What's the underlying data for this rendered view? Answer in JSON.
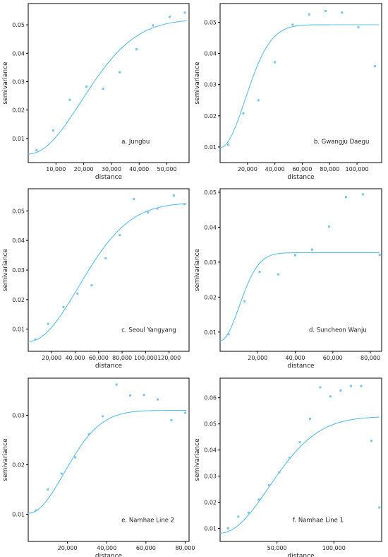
{
  "colors": {
    "point": "#7ec6e6",
    "curve": "#5bbde8",
    "axis": "#000000"
  },
  "chart_data": [
    {
      "type": "scatter",
      "title": "a. Jungbu",
      "xlabel": "distance",
      "ylabel": "semivariance",
      "xlim": [
        0,
        58000
      ],
      "ylim": [
        0.0015,
        0.0575
      ],
      "xticks": [
        10000,
        20000,
        30000,
        40000,
        50000
      ],
      "xtick_labels": [
        "10,000",
        "20,000",
        "30,000",
        "40,000",
        "50,000"
      ],
      "yticks": [
        0.01,
        0.02,
        0.03,
        0.04,
        0.05
      ],
      "ytick_labels": [
        "0.01",
        "0.02",
        "0.03",
        "0.04",
        "0.05"
      ],
      "points": {
        "x": [
          3000,
          9000,
          15000,
          21000,
          27000,
          33000,
          39000,
          45000,
          51000,
          56500
        ],
        "y": [
          0.0058,
          0.0128,
          0.0236,
          0.0282,
          0.0275,
          0.0333,
          0.0414,
          0.0498,
          0.0528,
          0.0543
        ]
      },
      "fit": {
        "model": "gaussian",
        "nugget": 0.0045,
        "sill": 0.052,
        "range": 47000
      }
    },
    {
      "type": "scatter",
      "title": "b. Gwangju Daegu",
      "xlabel": "distance",
      "ylabel": "semivariance",
      "xlim": [
        0,
        118000
      ],
      "ylim": [
        0.005,
        0.056
      ],
      "xticks": [
        20000,
        40000,
        60000,
        80000,
        100000
      ],
      "xtick_labels": [
        "20,000",
        "40,000",
        "60,000",
        "80,000",
        "100,000"
      ],
      "yticks": [
        0.01,
        0.02,
        0.03,
        0.04,
        0.05
      ],
      "ytick_labels": [
        "0.01",
        "0.02",
        "0.03",
        "0.04",
        "0.05"
      ],
      "points": {
        "x": [
          6000,
          17000,
          28000,
          40000,
          53000,
          65000,
          77000,
          89000,
          101000,
          113000
        ],
        "y": [
          0.0108,
          0.0208,
          0.025,
          0.0372,
          0.0492,
          0.0525,
          0.0536,
          0.0531,
          0.0484,
          0.0359
        ]
      },
      "fit": {
        "model": "gaussian",
        "nugget": 0.0098,
        "sill": 0.0492,
        "range": 45000
      }
    },
    {
      "type": "scatter",
      "title": "c. Seoul Yangyang",
      "xlabel": "distance",
      "ylabel": "semivariance",
      "xlim": [
        0,
        137000
      ],
      "ylim": [
        0.0025,
        0.0575
      ],
      "xticks": [
        20000,
        40000,
        60000,
        80000,
        100000,
        120000
      ],
      "xtick_labels": [
        "20,000",
        "40,000",
        "60,000",
        "80,000",
        "100,000",
        "120,000"
      ],
      "yticks": [
        0.01,
        0.02,
        0.03,
        0.04,
        0.05
      ],
      "ytick_labels": [
        "0.01",
        "0.02",
        "0.03",
        "0.04",
        "0.05"
      ],
      "points": {
        "x": [
          6000,
          17000,
          30000,
          42000,
          54000,
          66000,
          78000,
          90000,
          102000,
          110000,
          124000,
          133000
        ],
        "y": [
          0.0065,
          0.0118,
          0.0175,
          0.022,
          0.0248,
          0.034,
          0.0418,
          0.054,
          0.0495,
          0.0508,
          0.0552,
          0.0523
        ]
      },
      "fit": {
        "model": "gaussian",
        "nugget": 0.0058,
        "sill": 0.0528,
        "range": 105000
      }
    },
    {
      "type": "scatter",
      "title": "d. Suncheon Wanju",
      "xlabel": "distance",
      "ylabel": "semivariance",
      "xlim": [
        0,
        86000
      ],
      "ylim": [
        0.0045,
        0.051
      ],
      "xticks": [
        20000,
        40000,
        60000,
        80000
      ],
      "xtick_labels": [
        "20,000",
        "40,000",
        "60,000",
        "80,000"
      ],
      "yticks": [
        0.01,
        0.02,
        0.03,
        0.04,
        0.05
      ],
      "ytick_labels": [
        "0.01",
        "0.02",
        "0.03",
        "0.04",
        "0.05"
      ],
      "points": {
        "x": [
          4500,
          13000,
          21000,
          31000,
          40000,
          49000,
          58000,
          67000,
          76000,
          85000
        ],
        "y": [
          0.0094,
          0.0188,
          0.0272,
          0.0265,
          0.032,
          0.0336,
          0.0402,
          0.0486,
          0.0494,
          0.0321
        ]
      },
      "fit": {
        "model": "gaussian",
        "nugget": 0.0075,
        "sill": 0.0327,
        "range": 25000
      }
    },
    {
      "type": "scatter",
      "title": "e. Namhae Line 2",
      "xlabel": "distance",
      "ylabel": "semivariance",
      "xlim": [
        0,
        82000
      ],
      "ylim": [
        0.0045,
        0.0375
      ],
      "xticks": [
        20000,
        40000,
        60000,
        80000
      ],
      "xtick_labels": [
        "20,000",
        "40,000",
        "60,000",
        "80,000"
      ],
      "yticks": [
        0.01,
        0.02,
        0.03
      ],
      "ytick_labels": [
        "0.01",
        "0.02",
        "0.03"
      ],
      "points": {
        "x": [
          4000,
          10000,
          17000,
          24000,
          31000,
          38000,
          45000,
          52000,
          59000,
          66000,
          73000,
          80000
        ],
        "y": [
          0.0108,
          0.015,
          0.0182,
          0.0215,
          0.0262,
          0.0298,
          0.0362,
          0.034,
          0.0341,
          0.0332,
          0.029,
          0.0305
        ]
      },
      "fit": {
        "model": "gaussian",
        "nugget": 0.0102,
        "sill": 0.031,
        "range": 45000
      }
    },
    {
      "type": "scatter",
      "title": "f. Namhae Line 1",
      "xlabel": "distance",
      "ylabel": "semivariance",
      "xlim": [
        0,
        142000
      ],
      "ylim": [
        0.005,
        0.0675
      ],
      "xticks": [
        50000,
        100000
      ],
      "xtick_labels": [
        "50,000",
        "100,000"
      ],
      "yticks": [
        0.01,
        0.02,
        0.03,
        0.04,
        0.05,
        0.06
      ],
      "ytick_labels": [
        "0.01",
        "0.02",
        "0.03",
        "0.04",
        "0.05",
        "0.06"
      ],
      "points": {
        "x": [
          7000,
          16000,
          25000,
          34000,
          43000,
          52000,
          61000,
          70000,
          79000,
          88000,
          97000,
          106000,
          115000,
          124000,
          133000,
          140000
        ],
        "y": [
          0.01,
          0.0145,
          0.016,
          0.021,
          0.0265,
          0.0315,
          0.037,
          0.043,
          0.052,
          0.064,
          0.0605,
          0.0628,
          0.0645,
          0.0645,
          0.0435,
          0.018
        ]
      },
      "fit": {
        "model": "gaussian",
        "nugget": 0.0082,
        "sill": 0.0528,
        "range": 105000
      }
    }
  ]
}
